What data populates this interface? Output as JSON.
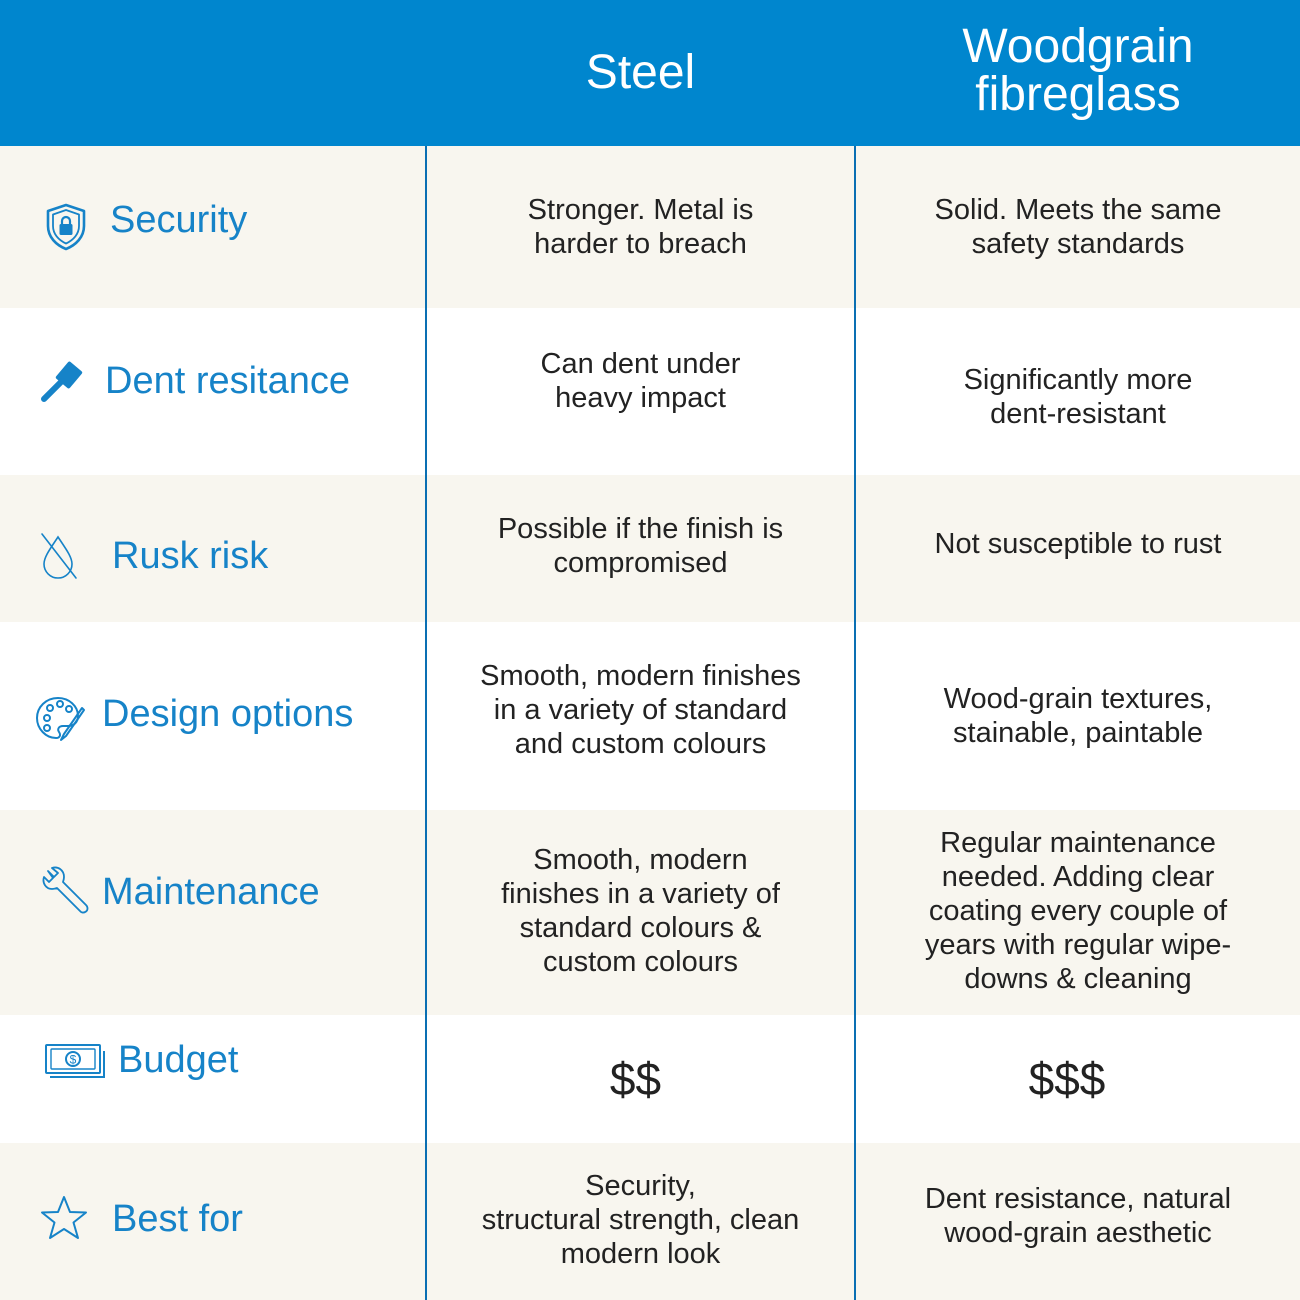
{
  "header": {
    "col1": "Steel",
    "col2": "Woodgrain\nfibreglass"
  },
  "colors": {
    "header_bg": "#0086ce",
    "accent": "#1683c8",
    "row_alt": "#f8f6ef",
    "divider": "#0a6fb3"
  },
  "rows": [
    {
      "icon": "shield-lock-icon",
      "label": "Security",
      "steel": "Stronger. Metal is\nharder to breach",
      "woodgrain": "Solid. Meets the same\nsafety standards"
    },
    {
      "icon": "hammer-icon",
      "label": "Dent resitance",
      "steel": "Can dent under\nheavy impact",
      "woodgrain": "Significantly more\ndent-resistant"
    },
    {
      "icon": "no-drop-icon",
      "label": "Rusk risk",
      "steel": "Possible if the finish is\ncompromised",
      "woodgrain": "Not susceptible to rust"
    },
    {
      "icon": "palette-icon",
      "label": "Design options",
      "steel": "Smooth, modern finishes\nin a variety of standard\nand custom colours",
      "woodgrain": "Wood-grain textures,\nstainable, paintable"
    },
    {
      "icon": "wrench-icon",
      "label": "Maintenance",
      "steel": "Smooth, modern\nfinishes in a variety of\nstandard colours &\ncustom colours",
      "woodgrain": "Regular maintenance\nneeded. Adding clear\ncoating every couple of\nyears with regular wipe-\ndowns & cleaning"
    },
    {
      "icon": "money-icon",
      "label": "Budget",
      "steel": "$$",
      "woodgrain": "$$$"
    },
    {
      "icon": "star-icon",
      "label": "Best for",
      "steel": "Security,\nstructural strength, clean\nmodern look",
      "woodgrain": "Dent resistance, natural\nwood-grain aesthetic"
    }
  ]
}
